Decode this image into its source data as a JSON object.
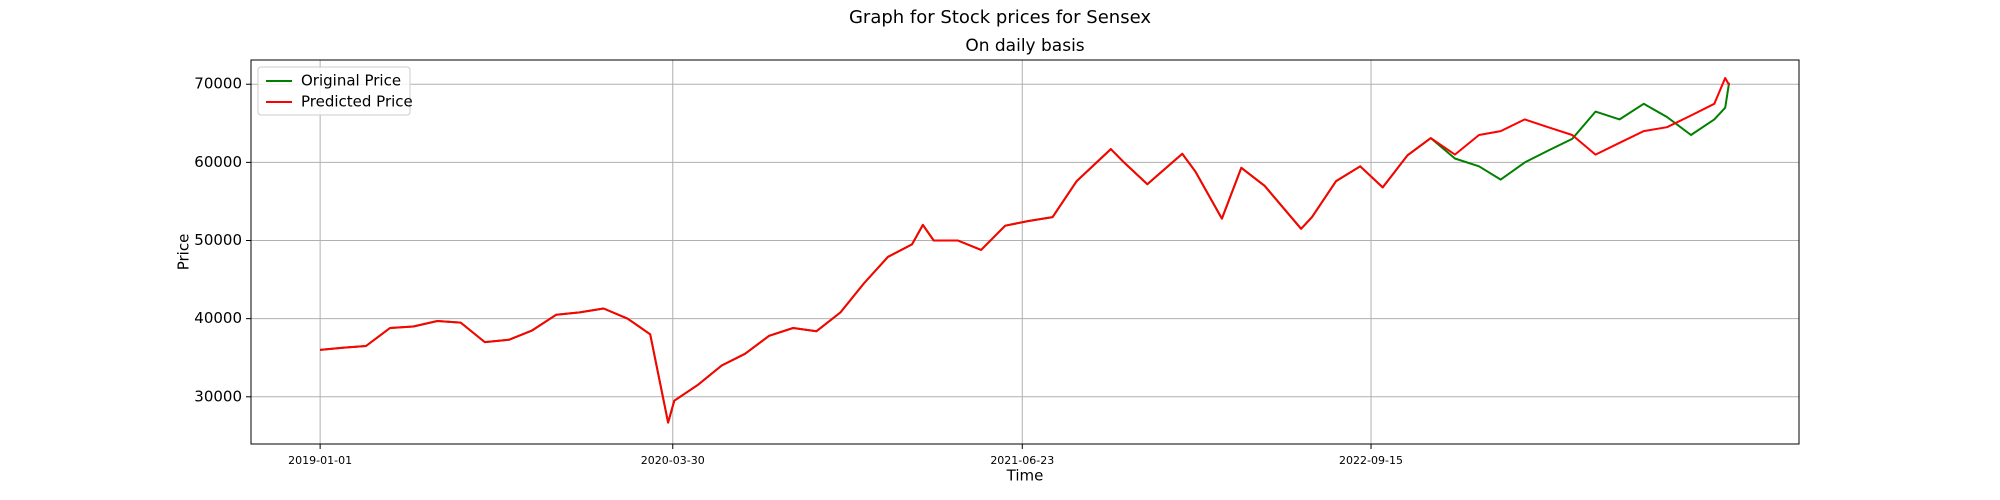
{
  "chart_data": {
    "type": "line",
    "title": "Graph for Stock prices for Sensex",
    "subtitle": "On daily basis",
    "x_label": "Time",
    "y_label": "Price",
    "x": [
      "2019-01-01",
      "2019-02-01",
      "2019-03-01",
      "2019-04-01",
      "2019-05-01",
      "2019-06-01",
      "2019-07-01",
      "2019-08-01",
      "2019-09-01",
      "2019-10-01",
      "2019-11-01",
      "2019-12-01",
      "2020-01-01",
      "2020-02-01",
      "2020-03-01",
      "2020-03-24",
      "2020-04-01",
      "2020-05-01",
      "2020-06-01",
      "2020-07-01",
      "2020-08-01",
      "2020-09-01",
      "2020-10-01",
      "2020-11-01",
      "2020-12-01",
      "2021-01-01",
      "2021-02-01",
      "2021-02-15",
      "2021-03-01",
      "2021-04-01",
      "2021-05-01",
      "2021-06-01",
      "2021-07-01",
      "2021-08-01",
      "2021-09-01",
      "2021-10-15",
      "2021-11-01",
      "2021-12-01",
      "2022-01-15",
      "2022-02-01",
      "2022-03-07",
      "2022-04-01",
      "2022-05-01",
      "2022-06-17",
      "2022-07-01",
      "2022-08-01",
      "2022-09-01",
      "2022-09-30",
      "2022-11-01",
      "2022-12-01",
      "2023-01-01",
      "2023-02-01",
      "2023-03-01",
      "2023-04-01",
      "2023-05-01",
      "2023-06-01",
      "2023-07-01",
      "2023-08-01",
      "2023-09-01",
      "2023-10-01",
      "2023-11-01",
      "2023-12-01",
      "2023-12-15",
      "2023-12-20"
    ],
    "series": [
      {
        "name": "Original Price",
        "color": "#008000",
        "values": [
          36000,
          36300,
          36500,
          38800,
          39000,
          39700,
          39500,
          37000,
          37300,
          38500,
          40500,
          40800,
          41300,
          40000,
          38000,
          26700,
          29500,
          31500,
          34000,
          35500,
          37800,
          38800,
          38400,
          40800,
          44500,
          47900,
          49500,
          52000,
          50000,
          50000,
          48800,
          51900,
          52500,
          53000,
          57600,
          61700,
          60000,
          57200,
          61100,
          58800,
          52800,
          59300,
          57000,
          51500,
          53000,
          57600,
          59500,
          56800,
          60900,
          63100,
          60500,
          59500,
          57800,
          60000,
          61500,
          63000,
          66500,
          65500,
          67500,
          65800,
          63500,
          65500,
          67000,
          70200
        ]
      },
      {
        "name": "Predicted Price",
        "color": "#ff0000",
        "values": [
          36000,
          36300,
          36500,
          38800,
          39000,
          39700,
          39500,
          37000,
          37300,
          38500,
          40500,
          40800,
          41300,
          40000,
          38000,
          26700,
          29500,
          31500,
          34000,
          35500,
          37800,
          38800,
          38400,
          40800,
          44500,
          47900,
          49500,
          52000,
          50000,
          50000,
          48800,
          51900,
          52500,
          53000,
          57600,
          61700,
          60000,
          57200,
          61100,
          58800,
          52800,
          59300,
          57000,
          51500,
          53000,
          57600,
          59500,
          56800,
          60900,
          63100,
          61000,
          63500,
          64000,
          65500,
          64500,
          63500,
          61000,
          62500,
          64000,
          64500,
          66000,
          67500,
          70800,
          69900
        ]
      }
    ],
    "xlim": [
      "2018-10-04",
      "2024-03-19"
    ],
    "xticks": [
      "2019-01-01",
      "2020-03-30",
      "2021-06-23",
      "2022-09-15"
    ],
    "ylim": [
      23960,
      73100
    ],
    "yticks": [
      30000,
      40000,
      50000,
      60000,
      70000
    ],
    "grid": true,
    "legend": "upper left"
  }
}
